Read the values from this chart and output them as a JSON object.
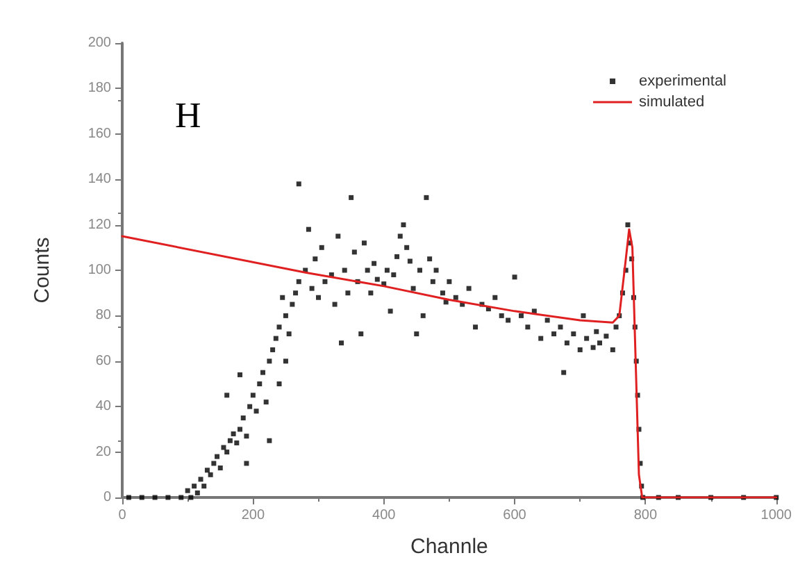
{
  "chart_data": {
    "type": "scatter",
    "xlabel": "Channle",
    "ylabel": "Counts",
    "annotations": [
      "H"
    ],
    "xlim": [
      0,
      1000
    ],
    "xticks": [
      0,
      200,
      400,
      600,
      800,
      1000
    ],
    "ylim": [
      0,
      200
    ],
    "yticks": [
      0,
      20,
      40,
      60,
      80,
      100,
      120,
      140,
      160,
      180,
      200
    ],
    "grid": false,
    "legend": "top right",
    "series": [
      {
        "name": "experimental",
        "marker": "square",
        "color": "#000000",
        "x": [
          10,
          30,
          50,
          70,
          90,
          100,
          105,
          110,
          115,
          120,
          125,
          130,
          135,
          140,
          145,
          150,
          155,
          160,
          165,
          170,
          175,
          180,
          185,
          190,
          195,
          200,
          205,
          210,
          215,
          220,
          225,
          230,
          235,
          240,
          245,
          250,
          255,
          260,
          265,
          270,
          160,
          180,
          190,
          225,
          270,
          250,
          240,
          280,
          285,
          290,
          295,
          300,
          305,
          310,
          320,
          325,
          330,
          335,
          340,
          345,
          350,
          355,
          360,
          365,
          370,
          375,
          380,
          385,
          390,
          400,
          405,
          410,
          415,
          420,
          425,
          430,
          435,
          440,
          445,
          450,
          455,
          460,
          465,
          470,
          475,
          480,
          490,
          495,
          500,
          510,
          520,
          530,
          540,
          550,
          560,
          570,
          580,
          590,
          600,
          610,
          620,
          630,
          640,
          650,
          660,
          670,
          675,
          680,
          690,
          700,
          705,
          710,
          720,
          725,
          730,
          740,
          750,
          755,
          760,
          765,
          770,
          773,
          776,
          779,
          782,
          784,
          786,
          788,
          790,
          792,
          794,
          796,
          820,
          850,
          900,
          950,
          1000
        ],
        "values": [
          0,
          0,
          0,
          0,
          0,
          3,
          0,
          5,
          2,
          8,
          5,
          12,
          10,
          15,
          18,
          13,
          22,
          20,
          25,
          28,
          24,
          30,
          35,
          27,
          40,
          45,
          38,
          50,
          55,
          42,
          60,
          65,
          70,
          75,
          88,
          80,
          72,
          85,
          90,
          95,
          45,
          54,
          15,
          25,
          138,
          60,
          50,
          100,
          118,
          92,
          105,
          88,
          110,
          95,
          98,
          85,
          115,
          68,
          100,
          90,
          132,
          108,
          95,
          72,
          112,
          100,
          90,
          103,
          96,
          94,
          100,
          82,
          98,
          106,
          115,
          120,
          110,
          104,
          92,
          72,
          100,
          80,
          132,
          105,
          95,
          100,
          90,
          86,
          95,
          88,
          85,
          92,
          75,
          85,
          83,
          88,
          80,
          78,
          97,
          80,
          75,
          82,
          70,
          78,
          72,
          75,
          55,
          68,
          72,
          65,
          80,
          70,
          66,
          73,
          68,
          71,
          65,
          75,
          80,
          90,
          100,
          120,
          112,
          105,
          88,
          75,
          60,
          45,
          30,
          15,
          5,
          0,
          0,
          0,
          0,
          0,
          0
        ]
      },
      {
        "name": "simulated",
        "type": "line",
        "marker": "none",
        "color": "#e02020",
        "x": [
          0,
          280,
          400,
          500,
          600,
          700,
          750,
          760,
          770,
          775,
          780,
          785,
          790,
          795,
          1000
        ],
        "values": [
          115,
          99,
          93,
          87,
          82,
          78,
          77,
          80,
          105,
          118,
          110,
          60,
          10,
          0,
          0
        ]
      }
    ]
  }
}
